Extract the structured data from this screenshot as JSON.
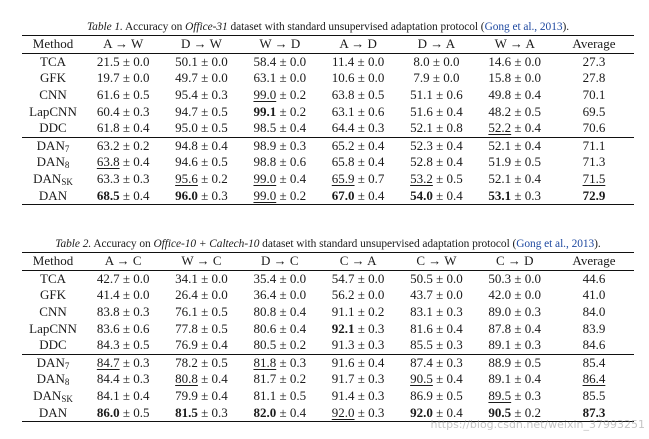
{
  "table1": {
    "caption_prefix": "Table 1.",
    "caption_text_a": " Accuracy on ",
    "caption_dataset": "Office-31",
    "caption_text_b": " dataset with standard unsupervised adaptation protocol (",
    "caption_cite": "Gong et al., 2013",
    "caption_end": ").",
    "headers": [
      "Method",
      "A → W",
      "D → W",
      "W → D",
      "A → D",
      "D → A",
      "W → A",
      "Average"
    ],
    "rows": [
      {
        "method": "TCA",
        "sub": "",
        "cells": [
          {
            "mean": "21.5",
            "std": "0.0",
            "style": ""
          },
          {
            "mean": "50.1",
            "std": "0.0",
            "style": ""
          },
          {
            "mean": "58.4",
            "std": "0.0",
            "style": ""
          },
          {
            "mean": "11.4",
            "std": "0.0",
            "style": ""
          },
          {
            "mean": "8.0",
            "std": "0.0",
            "style": ""
          },
          {
            "mean": "14.6",
            "std": "0.0",
            "style": ""
          }
        ],
        "avg": "27.3",
        "avg_style": ""
      },
      {
        "method": "GFK",
        "sub": "",
        "cells": [
          {
            "mean": "19.7",
            "std": "0.0",
            "style": ""
          },
          {
            "mean": "49.7",
            "std": "0.0",
            "style": ""
          },
          {
            "mean": "63.1",
            "std": "0.0",
            "style": ""
          },
          {
            "mean": "10.6",
            "std": "0.0",
            "style": ""
          },
          {
            "mean": "7.9",
            "std": "0.0",
            "style": ""
          },
          {
            "mean": "15.8",
            "std": "0.0",
            "style": ""
          }
        ],
        "avg": "27.8",
        "avg_style": ""
      },
      {
        "method": "CNN",
        "sub": "",
        "cells": [
          {
            "mean": "61.6",
            "std": "0.5",
            "style": ""
          },
          {
            "mean": "95.4",
            "std": "0.3",
            "style": ""
          },
          {
            "mean": "99.0",
            "std": "0.2",
            "style": "ul"
          },
          {
            "mean": "63.8",
            "std": "0.5",
            "style": ""
          },
          {
            "mean": "51.1",
            "std": "0.6",
            "style": ""
          },
          {
            "mean": "49.8",
            "std": "0.4",
            "style": ""
          }
        ],
        "avg": "70.1",
        "avg_style": ""
      },
      {
        "method": "LapCNN",
        "sub": "",
        "cells": [
          {
            "mean": "60.4",
            "std": "0.3",
            "style": ""
          },
          {
            "mean": "94.7",
            "std": "0.5",
            "style": ""
          },
          {
            "mean": "99.1",
            "std": "0.2",
            "style": "bold"
          },
          {
            "mean": "63.1",
            "std": "0.6",
            "style": ""
          },
          {
            "mean": "51.6",
            "std": "0.4",
            "style": ""
          },
          {
            "mean": "48.2",
            "std": "0.5",
            "style": ""
          }
        ],
        "avg": "69.5",
        "avg_style": ""
      },
      {
        "method": "DDC",
        "sub": "",
        "cells": [
          {
            "mean": "61.8",
            "std": "0.4",
            "style": ""
          },
          {
            "mean": "95.0",
            "std": "0.5",
            "style": ""
          },
          {
            "mean": "98.5",
            "std": "0.4",
            "style": ""
          },
          {
            "mean": "64.4",
            "std": "0.3",
            "style": ""
          },
          {
            "mean": "52.1",
            "std": "0.8",
            "style": ""
          },
          {
            "mean": "52.2",
            "std": "0.4",
            "style": "ul"
          }
        ],
        "avg": "70.6",
        "avg_style": ""
      },
      {
        "method": "DAN",
        "sub": "7",
        "sep": true,
        "cells": [
          {
            "mean": "63.2",
            "std": "0.2",
            "style": ""
          },
          {
            "mean": "94.8",
            "std": "0.4",
            "style": ""
          },
          {
            "mean": "98.9",
            "std": "0.3",
            "style": ""
          },
          {
            "mean": "65.2",
            "std": "0.4",
            "style": ""
          },
          {
            "mean": "52.3",
            "std": "0.4",
            "style": ""
          },
          {
            "mean": "52.1",
            "std": "0.4",
            "style": ""
          }
        ],
        "avg": "71.1",
        "avg_style": ""
      },
      {
        "method": "DAN",
        "sub": "8",
        "cells": [
          {
            "mean": "63.8",
            "std": "0.4",
            "style": "ul"
          },
          {
            "mean": "94.6",
            "std": "0.5",
            "style": ""
          },
          {
            "mean": "98.8",
            "std": "0.6",
            "style": ""
          },
          {
            "mean": "65.8",
            "std": "0.4",
            "style": ""
          },
          {
            "mean": "52.8",
            "std": "0.4",
            "style": ""
          },
          {
            "mean": "51.9",
            "std": "0.5",
            "style": ""
          }
        ],
        "avg": "71.3",
        "avg_style": ""
      },
      {
        "method": "DAN",
        "sub": "SK",
        "cells": [
          {
            "mean": "63.3",
            "std": "0.3",
            "style": ""
          },
          {
            "mean": "95.6",
            "std": "0.2",
            "style": "ul"
          },
          {
            "mean": "99.0",
            "std": "0.4",
            "style": "ul"
          },
          {
            "mean": "65.9",
            "std": "0.7",
            "style": "ul"
          },
          {
            "mean": "53.2",
            "std": "0.5",
            "style": "ul"
          },
          {
            "mean": "52.1",
            "std": "0.4",
            "style": ""
          }
        ],
        "avg": "71.5",
        "avg_style": "ul"
      },
      {
        "method": "DAN",
        "sub": "",
        "cells": [
          {
            "mean": "68.5",
            "std": "0.4",
            "style": "bold"
          },
          {
            "mean": "96.0",
            "std": "0.3",
            "style": "bold"
          },
          {
            "mean": "99.0",
            "std": "0.2",
            "style": "ul"
          },
          {
            "mean": "67.0",
            "std": "0.4",
            "style": "bold"
          },
          {
            "mean": "54.0",
            "std": "0.4",
            "style": "bold"
          },
          {
            "mean": "53.1",
            "std": "0.3",
            "style": "bold"
          }
        ],
        "avg": "72.9",
        "avg_style": "bold"
      }
    ]
  },
  "table2": {
    "caption_prefix": "Table 2.",
    "caption_text_a": " Accuracy on ",
    "caption_dataset": "Office-10 + Caltech-10",
    "caption_text_b": " dataset with standard unsupervised adaptation protocol (",
    "caption_cite": "Gong et al., 2013",
    "caption_end": ").",
    "headers": [
      "Method",
      "A → C",
      "W → C",
      "D → C",
      "C → A",
      "C → W",
      "C → D",
      "Average"
    ],
    "rows": [
      {
        "method": "TCA",
        "sub": "",
        "cells": [
          {
            "mean": "42.7",
            "std": "0.0",
            "style": ""
          },
          {
            "mean": "34.1",
            "std": "0.0",
            "style": ""
          },
          {
            "mean": "35.4",
            "std": "0.0",
            "style": ""
          },
          {
            "mean": "54.7",
            "std": "0.0",
            "style": ""
          },
          {
            "mean": "50.5",
            "std": "0.0",
            "style": ""
          },
          {
            "mean": "50.3",
            "std": "0.0",
            "style": ""
          }
        ],
        "avg": "44.6",
        "avg_style": ""
      },
      {
        "method": "GFK",
        "sub": "",
        "cells": [
          {
            "mean": "41.4",
            "std": "0.0",
            "style": ""
          },
          {
            "mean": "26.4",
            "std": "0.0",
            "style": ""
          },
          {
            "mean": "36.4",
            "std": "0.0",
            "style": ""
          },
          {
            "mean": "56.2",
            "std": "0.0",
            "style": ""
          },
          {
            "mean": "43.7",
            "std": "0.0",
            "style": ""
          },
          {
            "mean": "42.0",
            "std": "0.0",
            "style": ""
          }
        ],
        "avg": "41.0",
        "avg_style": ""
      },
      {
        "method": "CNN",
        "sub": "",
        "cells": [
          {
            "mean": "83.8",
            "std": "0.3",
            "style": ""
          },
          {
            "mean": "76.1",
            "std": "0.5",
            "style": ""
          },
          {
            "mean": "80.8",
            "std": "0.4",
            "style": ""
          },
          {
            "mean": "91.1",
            "std": "0.2",
            "style": ""
          },
          {
            "mean": "83.1",
            "std": "0.3",
            "style": ""
          },
          {
            "mean": "89.0",
            "std": "0.3",
            "style": ""
          }
        ],
        "avg": "84.0",
        "avg_style": ""
      },
      {
        "method": "LapCNN",
        "sub": "",
        "cells": [
          {
            "mean": "83.6",
            "std": "0.6",
            "style": ""
          },
          {
            "mean": "77.8",
            "std": "0.5",
            "style": ""
          },
          {
            "mean": "80.6",
            "std": "0.4",
            "style": ""
          },
          {
            "mean": "92.1",
            "std": "0.3",
            "style": "bold"
          },
          {
            "mean": "81.6",
            "std": "0.4",
            "style": ""
          },
          {
            "mean": "87.8",
            "std": "0.4",
            "style": ""
          }
        ],
        "avg": "83.9",
        "avg_style": ""
      },
      {
        "method": "DDC",
        "sub": "",
        "cells": [
          {
            "mean": "84.3",
            "std": "0.5",
            "style": ""
          },
          {
            "mean": "76.9",
            "std": "0.4",
            "style": ""
          },
          {
            "mean": "80.5",
            "std": "0.2",
            "style": ""
          },
          {
            "mean": "91.3",
            "std": "0.3",
            "style": ""
          },
          {
            "mean": "85.5",
            "std": "0.3",
            "style": ""
          },
          {
            "mean": "89.1",
            "std": "0.3",
            "style": ""
          }
        ],
        "avg": "84.6",
        "avg_style": ""
      },
      {
        "method": "DAN",
        "sub": "7",
        "sep": true,
        "cells": [
          {
            "mean": "84.7",
            "std": "0.3",
            "style": "ul"
          },
          {
            "mean": "78.2",
            "std": "0.5",
            "style": ""
          },
          {
            "mean": "81.8",
            "std": "0.3",
            "style": "ul"
          },
          {
            "mean": "91.6",
            "std": "0.4",
            "style": ""
          },
          {
            "mean": "87.4",
            "std": "0.3",
            "style": ""
          },
          {
            "mean": "88.9",
            "std": "0.5",
            "style": ""
          }
        ],
        "avg": "85.4",
        "avg_style": ""
      },
      {
        "method": "DAN",
        "sub": "8",
        "cells": [
          {
            "mean": "84.4",
            "std": "0.3",
            "style": ""
          },
          {
            "mean": "80.8",
            "std": "0.4",
            "style": "ul"
          },
          {
            "mean": "81.7",
            "std": "0.2",
            "style": ""
          },
          {
            "mean": "91.7",
            "std": "0.3",
            "style": ""
          },
          {
            "mean": "90.5",
            "std": "0.4",
            "style": "ul"
          },
          {
            "mean": "89.1",
            "std": "0.4",
            "style": ""
          }
        ],
        "avg": "86.4",
        "avg_style": "ul"
      },
      {
        "method": "DAN",
        "sub": "SK",
        "cells": [
          {
            "mean": "84.1",
            "std": "0.4",
            "style": ""
          },
          {
            "mean": "79.9",
            "std": "0.4",
            "style": ""
          },
          {
            "mean": "81.1",
            "std": "0.5",
            "style": ""
          },
          {
            "mean": "91.4",
            "std": "0.3",
            "style": ""
          },
          {
            "mean": "86.9",
            "std": "0.5",
            "style": ""
          },
          {
            "mean": "89.5",
            "std": "0.3",
            "style": "ul"
          }
        ],
        "avg": "85.5",
        "avg_style": ""
      },
      {
        "method": "DAN",
        "sub": "",
        "cells": [
          {
            "mean": "86.0",
            "std": "0.5",
            "style": "bold"
          },
          {
            "mean": "81.5",
            "std": "0.3",
            "style": "bold"
          },
          {
            "mean": "82.0",
            "std": "0.4",
            "style": "bold"
          },
          {
            "mean": "92.0",
            "std": "0.3",
            "style": "ul"
          },
          {
            "mean": "92.0",
            "std": "0.4",
            "style": "bold"
          },
          {
            "mean": "90.5",
            "std": "0.2",
            "style": "bold"
          }
        ],
        "avg": "87.3",
        "avg_style": "bold"
      }
    ]
  },
  "pm_symbol": "±",
  "watermark": "https://blog.csdn.net/weixin_37993251"
}
